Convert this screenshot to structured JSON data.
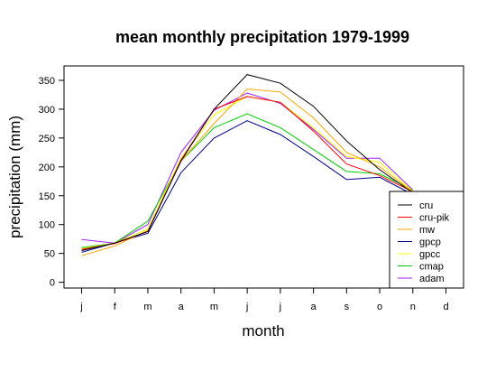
{
  "chart_data": {
    "type": "line",
    "title": "mean monthly precipitation 1979-1999",
    "xlabel": "month",
    "ylabel": "precipitation (mm)",
    "categories": [
      "j",
      "f",
      "m",
      "a",
      "m",
      "j",
      "j",
      "a",
      "s",
      "o",
      "n",
      "d"
    ],
    "ylim": [
      -10,
      375
    ],
    "yticks": [
      0,
      50,
      100,
      150,
      200,
      250,
      300,
      350
    ],
    "grid": false,
    "legend_position": "bottom-right",
    "series": [
      {
        "name": "cru",
        "color": "#000000",
        "values": [
          55,
          68,
          88,
          210,
          300,
          360,
          345,
          305,
          245,
          195,
          155,
          null
        ]
      },
      {
        "name": "cru-pik",
        "color": "#ff0000",
        "values": [
          57,
          67,
          88,
          212,
          300,
          322,
          312,
          262,
          205,
          185,
          157,
          null
        ]
      },
      {
        "name": "mw",
        "color": "#ffa500",
        "values": [
          46,
          63,
          90,
          210,
          275,
          335,
          330,
          285,
          225,
          200,
          157,
          null
        ]
      },
      {
        "name": "gpcp",
        "color": "#00008b",
        "values": [
          52,
          68,
          85,
          190,
          250,
          280,
          256,
          218,
          178,
          182,
          152,
          null
        ]
      },
      {
        "name": "gpcc",
        "color": "#ffff00",
        "values": [
          58,
          68,
          92,
          215,
          290,
          322,
          312,
          268,
          218,
          208,
          158,
          null
        ]
      },
      {
        "name": "cmap",
        "color": "#00cc00",
        "values": [
          60,
          68,
          106,
          210,
          268,
          292,
          268,
          230,
          192,
          188,
          160,
          null
        ]
      },
      {
        "name": "adam",
        "color": "#a020f0",
        "values": [
          74,
          68,
          100,
          225,
          298,
          328,
          310,
          265,
          215,
          215,
          160,
          null
        ]
      }
    ]
  }
}
